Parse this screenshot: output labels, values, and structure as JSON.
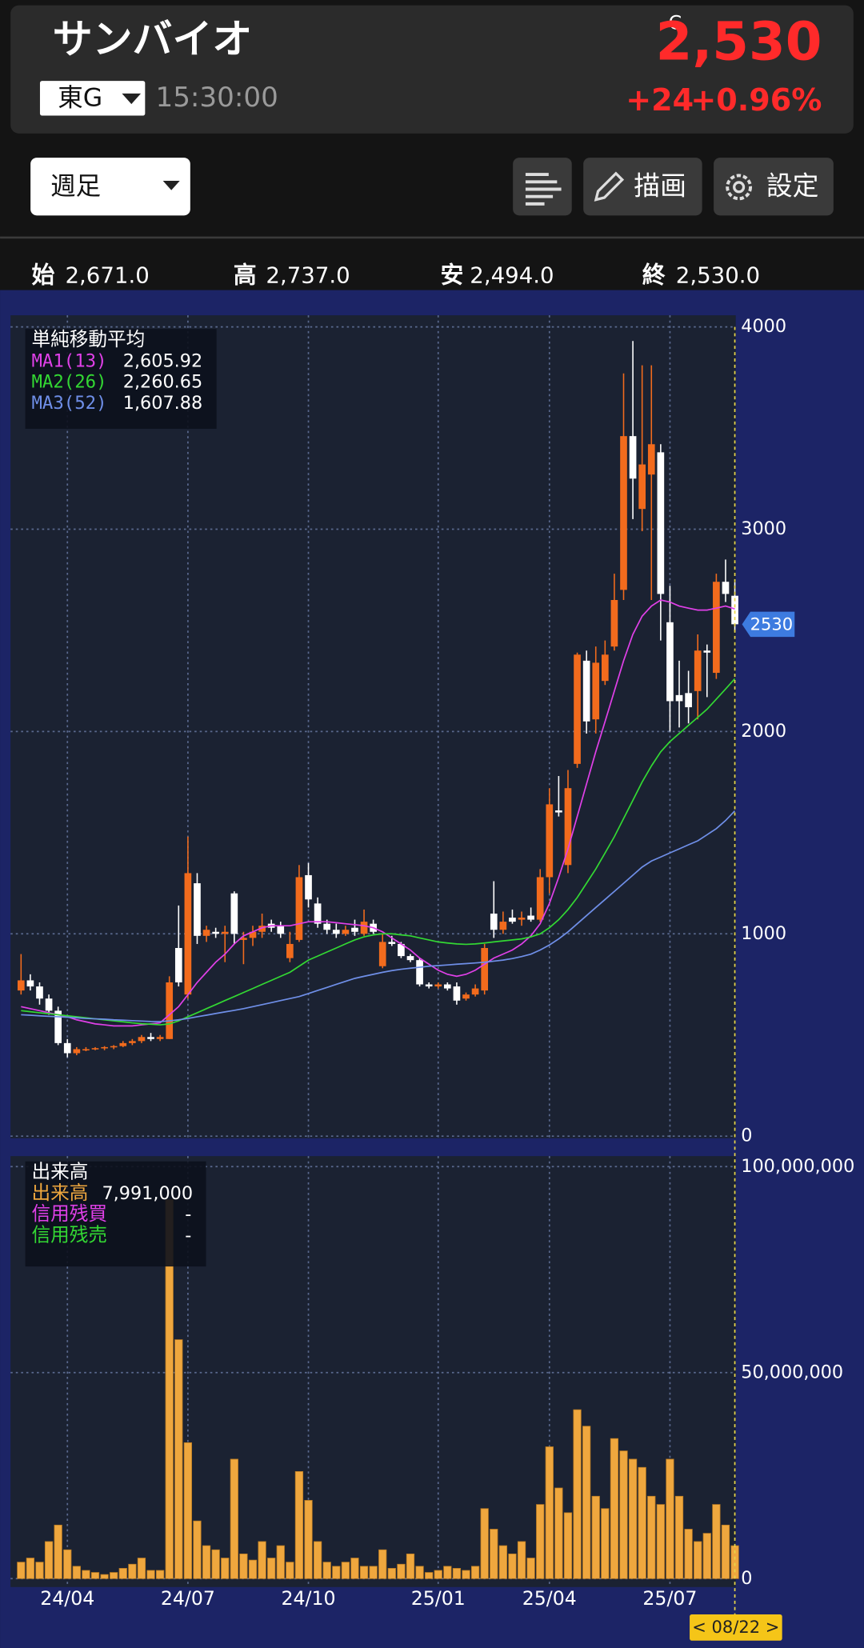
{
  "header": {
    "title": "サンバイオ",
    "market": "東G",
    "time": "15:30:00",
    "close_flag": "C",
    "price": "2,530",
    "change": "+24",
    "change_pct": "+0.96%"
  },
  "toolbar": {
    "period": "週足",
    "draw": "描画",
    "settings": "設定"
  },
  "ohlc": {
    "open_label": "始",
    "open": "2,671.0",
    "high_label": "高",
    "high": "2,737.0",
    "low_label": "安",
    "low": "2,494.0",
    "close_label": "終",
    "close": "2,530.0"
  },
  "chart_data": [
    {
      "type": "candlestick",
      "title": "単純移動平均",
      "up_color": "#f26b1d",
      "down_color": "#ffffff",
      "ylim": [
        0,
        4000
      ],
      "yticks": [
        0,
        1000,
        2000,
        3000,
        4000
      ],
      "grid": true,
      "open": [
        720,
        770,
        740,
        680,
        620,
        460,
        410,
        430,
        430,
        435,
        440,
        445,
        460,
        470,
        490,
        480,
        480,
        930,
        700,
        1250,
        990,
        1010,
        1000,
        1200,
        970,
        980,
        1010,
        1050,
        1040,
        880,
        970,
        1290,
        1150,
        1050,
        1020,
        1000,
        1030,
        1000,
        1050,
        840,
        960,
        950,
        890,
        870,
        750,
        740,
        750,
        740,
        680,
        700,
        720,
        1100,
        1020,
        1080,
        1070,
        1090,
        1070,
        1280,
        1610,
        1340,
        1840,
        2350,
        2060,
        2250,
        2420,
        2700,
        3460,
        3100,
        3270,
        3380,
        2540,
        2180,
        2190,
        2200,
        2400,
        2290,
        2740,
        2671
      ],
      "high": [
        900,
        800,
        760,
        700,
        640,
        480,
        440,
        440,
        440,
        445,
        450,
        470,
        480,
        500,
        510,
        500,
        790,
        1140,
        1480,
        1300,
        1040,
        1030,
        1040,
        1210,
        1010,
        1040,
        1100,
        1070,
        1060,
        1010,
        1340,
        1350,
        1180,
        1070,
        1050,
        1040,
        1070,
        1120,
        1070,
        1000,
        990,
        960,
        900,
        880,
        760,
        760,
        760,
        760,
        710,
        750,
        950,
        1260,
        1110,
        1120,
        1110,
        1130,
        1320,
        1720,
        1780,
        1810,
        2390,
        2400,
        2420,
        2450,
        2780,
        3770,
        3930,
        3810,
        3810,
        3420,
        2720,
        2350,
        2300,
        2480,
        2430,
        2780,
        2850,
        2737
      ],
      "low": [
        700,
        720,
        650,
        600,
        450,
        390,
        400,
        420,
        425,
        425,
        430,
        440,
        450,
        460,
        470,
        470,
        480,
        740,
        680,
        950,
        960,
        980,
        860,
        950,
        850,
        940,
        980,
        1010,
        980,
        860,
        960,
        1130,
        1030,
        1000,
        980,
        990,
        990,
        990,
        1000,
        830,
        940,
        880,
        860,
        740,
        730,
        730,
        720,
        650,
        670,
        690,
        700,
        980,
        1000,
        1050,
        1040,
        1060,
        1060,
        1200,
        1580,
        1300,
        1820,
        1990,
        1990,
        2230,
        2400,
        2650,
        3050,
        2990,
        2650,
        2450,
        2000,
        2020,
        2040,
        2060,
        2170,
        2260,
        2640,
        2494
      ],
      "close": [
        770,
        740,
        680,
        620,
        460,
        410,
        430,
        430,
        435,
        440,
        445,
        460,
        470,
        490,
        480,
        490,
        760,
        760,
        1300,
        990,
        1020,
        1000,
        1010,
        1000,
        980,
        1010,
        1040,
        1030,
        1000,
        950,
        1280,
        1170,
        1050,
        1020,
        1000,
        1020,
        1010,
        1060,
        1010,
        960,
        950,
        890,
        870,
        750,
        740,
        750,
        730,
        670,
        700,
        730,
        930,
        1020,
        1060,
        1060,
        1080,
        1070,
        1280,
        1640,
        1600,
        1720,
        2380,
        2050,
        2340,
        2380,
        2650,
        3460,
        3250,
        3320,
        3420,
        2680,
        2150,
        2150,
        2120,
        2400,
        2390,
        2740,
        2680,
        2530
      ],
      "series": [
        {
          "name": "MA1(13)",
          "color": "#e040e8",
          "value_label": "2,605.92",
          "values": [
            640,
            630,
            620,
            610,
            600,
            590,
            575,
            565,
            555,
            550,
            545,
            545,
            545,
            550,
            555,
            560,
            600,
            640,
            700,
            760,
            810,
            860,
            900,
            950,
            990,
            1010,
            1030,
            1040,
            1040,
            1040,
            1050,
            1060,
            1060,
            1060,
            1055,
            1050,
            1045,
            1040,
            1030,
            1010,
            980,
            950,
            920,
            880,
            850,
            820,
            800,
            790,
            800,
            820,
            850,
            880,
            900,
            920,
            950,
            990,
            1050,
            1150,
            1280,
            1420,
            1580,
            1740,
            1900,
            2050,
            2200,
            2350,
            2480,
            2570,
            2620,
            2650,
            2640,
            2620,
            2610,
            2600,
            2600,
            2610,
            2620,
            2605.92
          ]
        },
        {
          "name": "MA2(26)",
          "color": "#33d833",
          "value_label": "2,260.65",
          "values": [
            620,
            615,
            610,
            605,
            600,
            595,
            590,
            585,
            580,
            575,
            570,
            565,
            560,
            556,
            553,
            550,
            555,
            570,
            590,
            610,
            630,
            650,
            670,
            690,
            710,
            730,
            750,
            770,
            790,
            810,
            840,
            870,
            890,
            910,
            930,
            950,
            970,
            985,
            995,
            1000,
            1000,
            995,
            990,
            980,
            970,
            960,
            955,
            950,
            948,
            950,
            955,
            960,
            965,
            970,
            975,
            985,
            1000,
            1030,
            1070,
            1120,
            1180,
            1250,
            1320,
            1400,
            1480,
            1570,
            1660,
            1750,
            1830,
            1900,
            1950,
            1990,
            2030,
            2070,
            2110,
            2160,
            2210,
            2260.65
          ]
        },
        {
          "name": "MA3(52)",
          "color": "#6f8fe8",
          "value_label": "1,607.88",
          "values": [
            600,
            598,
            595,
            592,
            590,
            588,
            585,
            582,
            580,
            578,
            575,
            573,
            571,
            569,
            567,
            566,
            570,
            575,
            582,
            590,
            598,
            606,
            614,
            622,
            630,
            640,
            650,
            660,
            670,
            680,
            690,
            705,
            720,
            735,
            750,
            765,
            780,
            790,
            800,
            810,
            818,
            825,
            830,
            835,
            840,
            843,
            846,
            850,
            853,
            856,
            860,
            865,
            870,
            878,
            888,
            900,
            920,
            945,
            975,
            1010,
            1050,
            1090,
            1130,
            1170,
            1210,
            1250,
            1290,
            1330,
            1360,
            1380,
            1400,
            1420,
            1440,
            1460,
            1490,
            1520,
            1560,
            1607.88
          ]
        }
      ],
      "price_marker": {
        "value": 2530,
        "label": "2530"
      }
    },
    {
      "type": "bar",
      "title": "出来高",
      "color": "#efa73e",
      "cursor_label": "< 08/22 >",
      "ylim": [
        0,
        100000000
      ],
      "yticks": [
        0,
        {
          "value": 50000000,
          "label": "50,000,000"
        },
        {
          "value": 100000000,
          "label": "100,000,000"
        }
      ],
      "grid": true,
      "categories": [
        null,
        null,
        null,
        null,
        null,
        "24/04",
        null,
        null,
        null,
        null,
        null,
        null,
        null,
        null,
        null,
        null,
        null,
        null,
        "24/07",
        null,
        null,
        null,
        null,
        null,
        null,
        null,
        null,
        null,
        null,
        null,
        null,
        "24/10",
        null,
        null,
        null,
        null,
        null,
        null,
        null,
        null,
        null,
        null,
        null,
        null,
        null,
        "25/01",
        null,
        null,
        null,
        null,
        null,
        null,
        null,
        null,
        null,
        null,
        null,
        "25/04",
        null,
        null,
        null,
        null,
        null,
        null,
        null,
        null,
        null,
        null,
        null,
        null,
        "25/07",
        null,
        null,
        null,
        null,
        null,
        null,
        null
      ],
      "values": [
        4000000,
        5000000,
        4000000,
        9000000,
        13000000,
        7000000,
        3000000,
        2000000,
        1500000,
        1000000,
        1500000,
        2500000,
        3500000,
        5000000,
        2000000,
        2000000,
        92000000,
        58000000,
        33000000,
        14000000,
        8000000,
        7000000,
        5000000,
        29000000,
        6000000,
        4500000,
        9000000,
        5000000,
        8000000,
        4000000,
        26000000,
        19000000,
        9000000,
        4000000,
        3000000,
        4000000,
        5000000,
        3000000,
        3000000,
        7000000,
        2500000,
        3500000,
        6000000,
        3000000,
        1500000,
        2000000,
        3000000,
        2500000,
        2000000,
        3000000,
        17000000,
        12000000,
        8000000,
        6000000,
        9000000,
        5000000,
        18000000,
        32000000,
        22000000,
        16000000,
        41000000,
        37000000,
        20000000,
        17000000,
        34000000,
        31000000,
        29000000,
        27000000,
        20000000,
        18000000,
        29000000,
        20000000,
        12000000,
        9000000,
        11000000,
        18000000,
        13000000,
        7991000
      ],
      "legend": [
        {
          "name": "出来高",
          "color": "#efa73e",
          "value_label": "7,991,000"
        },
        {
          "name": "信用残買",
          "color": "#e040e8",
          "value_label": "-"
        },
        {
          "name": "信用残売",
          "color": "#33d833",
          "value_label": "-"
        }
      ]
    }
  ]
}
